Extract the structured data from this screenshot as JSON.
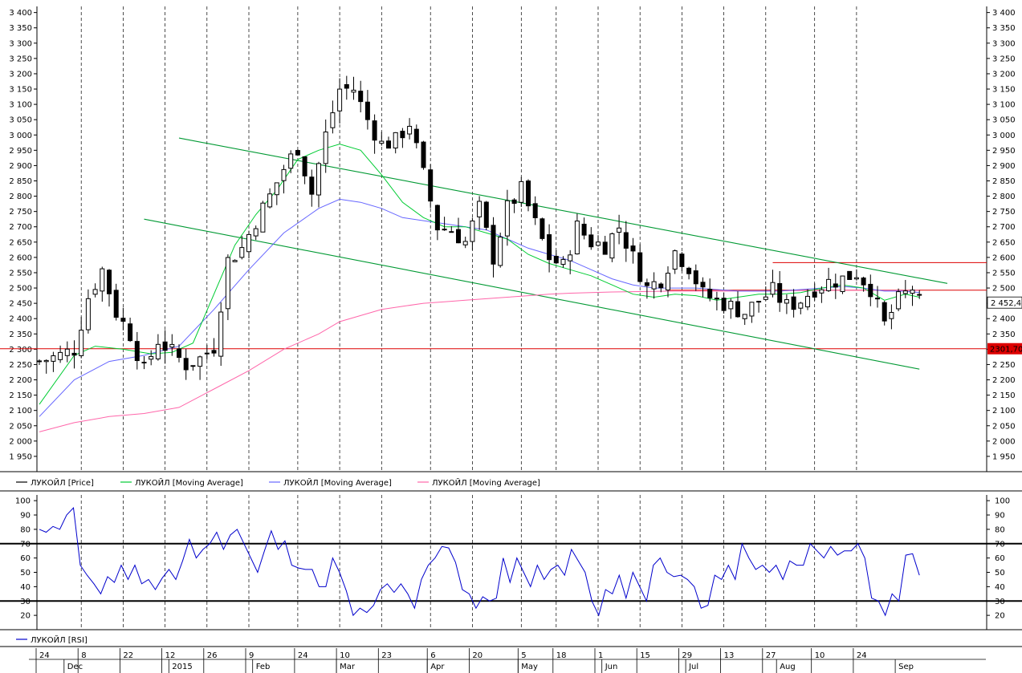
{
  "colors": {
    "price": "#000000",
    "ma_fast": "#00cc33",
    "ma_mid": "#6666ff",
    "ma_slow": "#ff66aa",
    "channel": "#009933",
    "level": "#dd0000",
    "rsi": "#0000cc",
    "rsi_band": "#000000",
    "grid": "#000000"
  },
  "chart_data": [
    {
      "type": "candlestick",
      "ylim": [
        1900,
        3420
      ],
      "yticks": [
        "1 950",
        "2 000",
        "2 050",
        "2 100",
        "2 150",
        "2 200",
        "2 250",
        "2 300",
        "2 350",
        "2 400",
        "2 450",
        "2 500",
        "2 550",
        "2 600",
        "2 650",
        "2 700",
        "2 750",
        "2 800",
        "2 850",
        "2 900",
        "2 950",
        "3 000",
        "3 050",
        "3 100",
        "3 150",
        "3 200",
        "3 250",
        "3 300",
        "3 350",
        "3 400"
      ],
      "ytick_values": [
        1950,
        2000,
        2050,
        2100,
        2150,
        2200,
        2250,
        2300,
        2350,
        2400,
        2450,
        2500,
        2550,
        2600,
        2650,
        2700,
        2750,
        2800,
        2850,
        2900,
        2950,
        3000,
        3050,
        3100,
        3150,
        3200,
        3250,
        3300,
        3350,
        3400
      ],
      "last_price_label": "2 452,4",
      "last_price": 2452.4,
      "level_label": "2301,70",
      "levels": [
        2301.7,
        2493,
        2583
      ],
      "legend": [
        {
          "name": "ЛУКОЙЛ [Price]",
          "color_key": "price"
        },
        {
          "name": "ЛУКОЙЛ [Moving Average]",
          "color_key": "ma_fast"
        },
        {
          "name": "ЛУКОЙЛ [Moving Average]",
          "color_key": "ma_mid"
        },
        {
          "name": "ЛУКОЙЛ [Moving Average]",
          "color_key": "ma_slow"
        }
      ],
      "channel_upper": [
        [
          20,
          2990
        ],
        [
          130,
          2515
        ]
      ],
      "channel_lower": [
        [
          15,
          2725
        ],
        [
          126,
          2235
        ]
      ],
      "close_path": [
        [
          0,
          2260
        ],
        [
          3,
          2280
        ],
        [
          5,
          2300
        ],
        [
          7,
          2470
        ],
        [
          9,
          2560
        ],
        [
          11,
          2420
        ],
        [
          13,
          2350
        ],
        [
          15,
          2230
        ],
        [
          17,
          2330
        ],
        [
          19,
          2290
        ],
        [
          21,
          2250
        ],
        [
          23,
          2270
        ],
        [
          25,
          2310
        ],
        [
          27,
          2590
        ],
        [
          29,
          2630
        ],
        [
          31,
          2720
        ],
        [
          33,
          2800
        ],
        [
          35,
          2890
        ],
        [
          37,
          2960
        ],
        [
          39,
          2810
        ],
        [
          41,
          3000
        ],
        [
          43,
          3150
        ],
        [
          45,
          3150
        ],
        [
          47,
          3050
        ],
        [
          49,
          2970
        ],
        [
          51,
          2980
        ],
        [
          53,
          3040
        ],
        [
          55,
          2870
        ],
        [
          57,
          2700
        ],
        [
          59,
          2690
        ],
        [
          61,
          2650
        ],
        [
          63,
          2760
        ],
        [
          65,
          2600
        ],
        [
          67,
          2760
        ],
        [
          69,
          2820
        ],
        [
          71,
          2710
        ],
        [
          73,
          2600
        ],
        [
          75,
          2570
        ],
        [
          77,
          2700
        ],
        [
          79,
          2650
        ],
        [
          81,
          2640
        ],
        [
          83,
          2700
        ],
        [
          85,
          2600
        ],
        [
          87,
          2500
        ],
        [
          89,
          2530
        ],
        [
          91,
          2620
        ],
        [
          93,
          2570
        ],
        [
          95,
          2480
        ],
        [
          97,
          2460
        ],
        [
          99,
          2440
        ],
        [
          101,
          2420
        ],
        [
          103,
          2460
        ],
        [
          105,
          2490
        ],
        [
          107,
          2440
        ],
        [
          109,
          2460
        ],
        [
          111,
          2500
        ],
        [
          113,
          2520
        ],
        [
          115,
          2530
        ],
        [
          117,
          2550
        ],
        [
          119,
          2500
        ],
        [
          121,
          2380
        ],
        [
          123,
          2460
        ],
        [
          125,
          2500
        ],
        [
          126,
          2452
        ]
      ],
      "ma_fast": [
        [
          0,
          2120
        ],
        [
          5,
          2280
        ],
        [
          8,
          2310
        ],
        [
          12,
          2300
        ],
        [
          16,
          2285
        ],
        [
          19,
          2290
        ],
        [
          22,
          2320
        ],
        [
          25,
          2480
        ],
        [
          28,
          2640
        ],
        [
          31,
          2740
        ],
        [
          34,
          2820
        ],
        [
          37,
          2920
        ],
        [
          40,
          2950
        ],
        [
          43,
          2970
        ],
        [
          46,
          2950
        ],
        [
          49,
          2870
        ],
        [
          52,
          2780
        ],
        [
          55,
          2730
        ],
        [
          58,
          2700
        ],
        [
          61,
          2700
        ],
        [
          64,
          2680
        ],
        [
          67,
          2660
        ],
        [
          70,
          2610
        ],
        [
          73,
          2580
        ],
        [
          76,
          2560
        ],
        [
          79,
          2540
        ],
        [
          82,
          2510
        ],
        [
          85,
          2480
        ],
        [
          88,
          2470
        ],
        [
          91,
          2480
        ],
        [
          94,
          2475
        ],
        [
          97,
          2460
        ],
        [
          100,
          2470
        ],
        [
          103,
          2480
        ],
        [
          106,
          2480
        ],
        [
          109,
          2485
        ],
        [
          112,
          2500
        ],
        [
          115,
          2510
        ],
        [
          118,
          2500
        ],
        [
          121,
          2460
        ],
        [
          124,
          2480
        ],
        [
          126,
          2470
        ]
      ],
      "ma_mid": [
        [
          0,
          2080
        ],
        [
          5,
          2200
        ],
        [
          10,
          2260
        ],
        [
          15,
          2280
        ],
        [
          20,
          2310
        ],
        [
          25,
          2430
        ],
        [
          30,
          2560
        ],
        [
          35,
          2680
        ],
        [
          40,
          2760
        ],
        [
          43,
          2790
        ],
        [
          46,
          2780
        ],
        [
          49,
          2760
        ],
        [
          52,
          2730
        ],
        [
          55,
          2720
        ],
        [
          58,
          2710
        ],
        [
          61,
          2700
        ],
        [
          64,
          2690
        ],
        [
          67,
          2660
        ],
        [
          70,
          2630
        ],
        [
          73,
          2610
        ],
        [
          76,
          2590
        ],
        [
          79,
          2560
        ],
        [
          82,
          2530
        ],
        [
          85,
          2510
        ],
        [
          88,
          2500
        ],
        [
          91,
          2500
        ],
        [
          94,
          2500
        ],
        [
          97,
          2495
        ],
        [
          100,
          2490
        ],
        [
          103,
          2490
        ],
        [
          106,
          2490
        ],
        [
          109,
          2495
        ],
        [
          112,
          2500
        ],
        [
          115,
          2505
        ],
        [
          118,
          2500
        ],
        [
          121,
          2490
        ],
        [
          124,
          2490
        ],
        [
          126,
          2485
        ]
      ],
      "ma_slow": [
        [
          0,
          2030
        ],
        [
          5,
          2060
        ],
        [
          10,
          2080
        ],
        [
          15,
          2090
        ],
        [
          20,
          2110
        ],
        [
          25,
          2170
        ],
        [
          30,
          2230
        ],
        [
          35,
          2300
        ],
        [
          40,
          2350
        ],
        [
          43,
          2390
        ],
        [
          46,
          2410
        ],
        [
          49,
          2430
        ],
        [
          52,
          2440
        ],
        [
          55,
          2450
        ],
        [
          58,
          2455
        ],
        [
          61,
          2460
        ],
        [
          64,
          2465
        ],
        [
          67,
          2470
        ],
        [
          70,
          2475
        ],
        [
          73,
          2480
        ],
        [
          76,
          2483
        ],
        [
          79,
          2485
        ],
        [
          82,
          2487
        ],
        [
          85,
          2488
        ],
        [
          88,
          2489
        ],
        [
          91,
          2490
        ],
        [
          94,
          2490
        ],
        [
          97,
          2490
        ],
        [
          100,
          2490
        ],
        [
          103,
          2490
        ],
        [
          106,
          2491
        ],
        [
          109,
          2492
        ],
        [
          112,
          2492
        ],
        [
          115,
          2493
        ],
        [
          118,
          2493
        ],
        [
          121,
          2492
        ],
        [
          124,
          2492
        ],
        [
          126,
          2492
        ]
      ]
    },
    {
      "type": "line",
      "ylim": [
        10,
        104
      ],
      "yticks": [
        "20",
        "30",
        "40",
        "50",
        "60",
        "70",
        "80",
        "90",
        "100"
      ],
      "ytick_values": [
        20,
        30,
        40,
        50,
        60,
        70,
        80,
        90,
        100
      ],
      "bands": [
        30,
        70
      ],
      "legend": [
        {
          "name": "ЛУКОЙЛ [RSI]",
          "color_key": "rsi"
        }
      ],
      "values": [
        80,
        78,
        82,
        80,
        90,
        95,
        55,
        48,
        42,
        35,
        47,
        43,
        55,
        45,
        55,
        42,
        45,
        38,
        46,
        52,
        45,
        58,
        73,
        60,
        66,
        70,
        78,
        66,
        76,
        80,
        70,
        60,
        50,
        65,
        79,
        66,
        72,
        55,
        53,
        52,
        52,
        40,
        40,
        60,
        50,
        37,
        20,
        25,
        22,
        27,
        38,
        42,
        36,
        42,
        35,
        25,
        45,
        55,
        60,
        68,
        67,
        57,
        38,
        35,
        25,
        33,
        30,
        32,
        60,
        43,
        60,
        50,
        40,
        55,
        45,
        52,
        55,
        48,
        66,
        58,
        50,
        30,
        20,
        38,
        35,
        48,
        32,
        50,
        40,
        30,
        55,
        60,
        50,
        47,
        48,
        45,
        40,
        25,
        27,
        48,
        45,
        55,
        45,
        70,
        60,
        52,
        55,
        50,
        55,
        45,
        58,
        55,
        55,
        70,
        65,
        60,
        68,
        62,
        65,
        65,
        70,
        60,
        32,
        30,
        20,
        35,
        30,
        62,
        63,
        48
      ]
    }
  ],
  "xaxis": {
    "day_labels": [
      "24",
      "8",
      "22",
      "12",
      "26",
      "9",
      "24",
      "10",
      "23",
      "6",
      "20",
      "5",
      "18",
      "1",
      "15",
      "29",
      "13",
      "27",
      "10",
      "24"
    ],
    "month_labels": [
      "Dec",
      "2015",
      "Feb",
      "Mar",
      "Apr",
      "May",
      "Jun",
      "Jul",
      "Aug",
      "Sep"
    ]
  }
}
